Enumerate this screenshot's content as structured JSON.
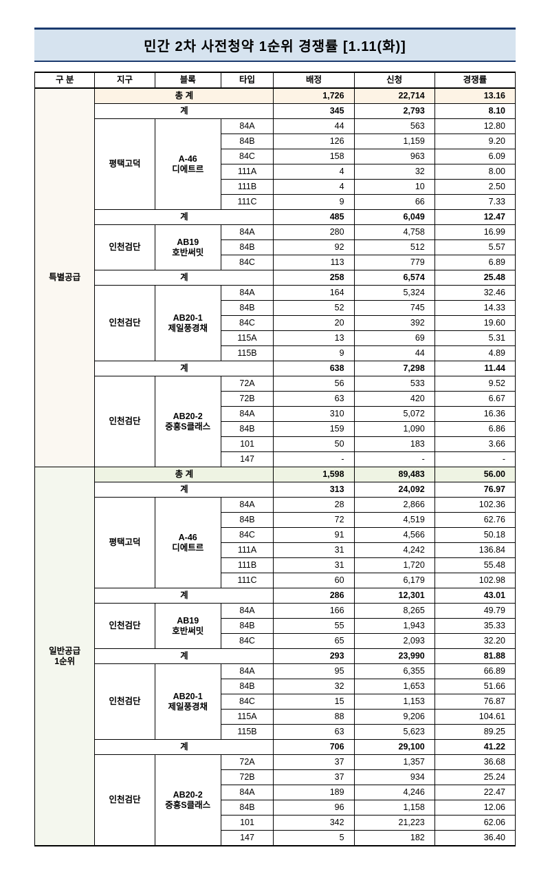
{
  "title": "민간 2차 사전청약 1순위 경쟁률 [1.11(화)]",
  "headers": [
    "구 분",
    "지구",
    "블록",
    "타입",
    "배정",
    "신청",
    "경쟁률"
  ],
  "labels": {
    "grand": "총 계",
    "sub": "계"
  },
  "categories": [
    {
      "name": "특별공급",
      "grand": {
        "alloc": "1,726",
        "apply": "22,714",
        "ratio": "13.16"
      },
      "groups": [
        {
          "district": "평택고덕",
          "block": "A-46\n디에트르",
          "sub": {
            "alloc": "345",
            "apply": "2,793",
            "ratio": "8.10"
          },
          "rows": [
            {
              "type": "84A",
              "alloc": "44",
              "apply": "563",
              "ratio": "12.80"
            },
            {
              "type": "84B",
              "alloc": "126",
              "apply": "1,159",
              "ratio": "9.20"
            },
            {
              "type": "84C",
              "alloc": "158",
              "apply": "963",
              "ratio": "6.09"
            },
            {
              "type": "111A",
              "alloc": "4",
              "apply": "32",
              "ratio": "8.00"
            },
            {
              "type": "111B",
              "alloc": "4",
              "apply": "10",
              "ratio": "2.50"
            },
            {
              "type": "111C",
              "alloc": "9",
              "apply": "66",
              "ratio": "7.33"
            }
          ]
        },
        {
          "district": "인천검단",
          "block": "AB19\n호반써밋",
          "sub": {
            "alloc": "485",
            "apply": "6,049",
            "ratio": "12.47"
          },
          "rows": [
            {
              "type": "84A",
              "alloc": "280",
              "apply": "4,758",
              "ratio": "16.99"
            },
            {
              "type": "84B",
              "alloc": "92",
              "apply": "512",
              "ratio": "5.57"
            },
            {
              "type": "84C",
              "alloc": "113",
              "apply": "779",
              "ratio": "6.89"
            }
          ]
        },
        {
          "district": "인천검단",
          "block": "AB20-1\n제일풍경채",
          "sub": {
            "alloc": "258",
            "apply": "6,574",
            "ratio": "25.48"
          },
          "rows": [
            {
              "type": "84A",
              "alloc": "164",
              "apply": "5,324",
              "ratio": "32.46"
            },
            {
              "type": "84B",
              "alloc": "52",
              "apply": "745",
              "ratio": "14.33"
            },
            {
              "type": "84C",
              "alloc": "20",
              "apply": "392",
              "ratio": "19.60"
            },
            {
              "type": "115A",
              "alloc": "13",
              "apply": "69",
              "ratio": "5.31"
            },
            {
              "type": "115B",
              "alloc": "9",
              "apply": "44",
              "ratio": "4.89"
            }
          ]
        },
        {
          "district": "인천검단",
          "block": "AB20-2\n중흥S클래스",
          "sub": {
            "alloc": "638",
            "apply": "7,298",
            "ratio": "11.44"
          },
          "rows": [
            {
              "type": "72A",
              "alloc": "56",
              "apply": "533",
              "ratio": "9.52"
            },
            {
              "type": "72B",
              "alloc": "63",
              "apply": "420",
              "ratio": "6.67"
            },
            {
              "type": "84A",
              "alloc": "310",
              "apply": "5,072",
              "ratio": "16.36"
            },
            {
              "type": "84B",
              "alloc": "159",
              "apply": "1,090",
              "ratio": "6.86"
            },
            {
              "type": "101",
              "alloc": "50",
              "apply": "183",
              "ratio": "3.66"
            },
            {
              "type": "147",
              "alloc": "-",
              "apply": "-",
              "ratio": "-"
            }
          ]
        }
      ]
    },
    {
      "name": "일반공급\n1순위",
      "grand": {
        "alloc": "1,598",
        "apply": "89,483",
        "ratio": "56.00"
      },
      "groups": [
        {
          "district": "평택고덕",
          "block": "A-46\n디에트르",
          "sub": {
            "alloc": "313",
            "apply": "24,092",
            "ratio": "76.97"
          },
          "rows": [
            {
              "type": "84A",
              "alloc": "28",
              "apply": "2,866",
              "ratio": "102.36"
            },
            {
              "type": "84B",
              "alloc": "72",
              "apply": "4,519",
              "ratio": "62.76"
            },
            {
              "type": "84C",
              "alloc": "91",
              "apply": "4,566",
              "ratio": "50.18"
            },
            {
              "type": "111A",
              "alloc": "31",
              "apply": "4,242",
              "ratio": "136.84"
            },
            {
              "type": "111B",
              "alloc": "31",
              "apply": "1,720",
              "ratio": "55.48"
            },
            {
              "type": "111C",
              "alloc": "60",
              "apply": "6,179",
              "ratio": "102.98"
            }
          ]
        },
        {
          "district": "인천검단",
          "block": "AB19\n호반써밋",
          "sub": {
            "alloc": "286",
            "apply": "12,301",
            "ratio": "43.01"
          },
          "rows": [
            {
              "type": "84A",
              "alloc": "166",
              "apply": "8,265",
              "ratio": "49.79"
            },
            {
              "type": "84B",
              "alloc": "55",
              "apply": "1,943",
              "ratio": "35.33"
            },
            {
              "type": "84C",
              "alloc": "65",
              "apply": "2,093",
              "ratio": "32.20"
            }
          ]
        },
        {
          "district": "인천검단",
          "block": "AB20-1\n제일풍경채",
          "sub": {
            "alloc": "293",
            "apply": "23,990",
            "ratio": "81.88"
          },
          "rows": [
            {
              "type": "84A",
              "alloc": "95",
              "apply": "6,355",
              "ratio": "66.89"
            },
            {
              "type": "84B",
              "alloc": "32",
              "apply": "1,653",
              "ratio": "51.66"
            },
            {
              "type": "84C",
              "alloc": "15",
              "apply": "1,153",
              "ratio": "76.87"
            },
            {
              "type": "115A",
              "alloc": "88",
              "apply": "9,206",
              "ratio": "104.61"
            },
            {
              "type": "115B",
              "alloc": "63",
              "apply": "5,623",
              "ratio": "89.25"
            }
          ]
        },
        {
          "district": "인천검단",
          "block": "AB20-2\n중흥S클래스",
          "sub": {
            "alloc": "706",
            "apply": "29,100",
            "ratio": "41.22"
          },
          "rows": [
            {
              "type": "72A",
              "alloc": "37",
              "apply": "1,357",
              "ratio": "36.68"
            },
            {
              "type": "72B",
              "alloc": "37",
              "apply": "934",
              "ratio": "25.24"
            },
            {
              "type": "84A",
              "alloc": "189",
              "apply": "4,246",
              "ratio": "22.47"
            },
            {
              "type": "84B",
              "alloc": "96",
              "apply": "1,158",
              "ratio": "12.06"
            },
            {
              "type": "101",
              "alloc": "342",
              "apply": "21,223",
              "ratio": "62.06"
            },
            {
              "type": "147",
              "alloc": "5",
              "apply": "182",
              "ratio": "36.40"
            }
          ]
        }
      ]
    }
  ],
  "colors": {
    "title_bg": "#d6e3ef",
    "title_border": "#1a3a6e",
    "total_cream": "#fdf3e5",
    "total_green": "#eef3e3",
    "cat_cream": "#fbf8f2",
    "cat_green": "#f4f7ee"
  }
}
